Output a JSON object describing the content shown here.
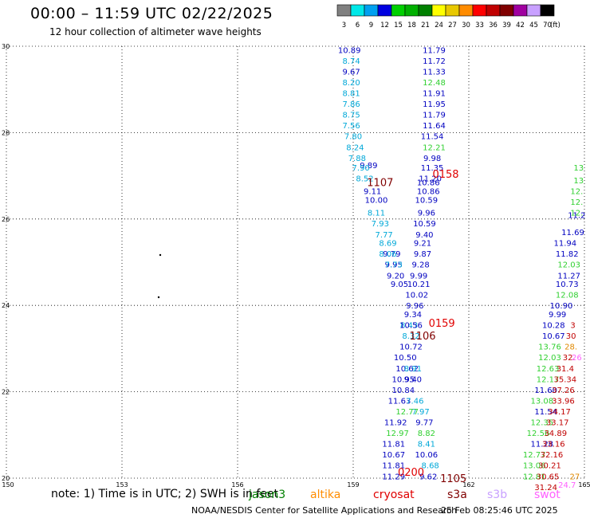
{
  "header": {
    "title": "00:00 – 11:59 UTC 02/22/2025",
    "subtitle": "12 hour collection of altimeter wave heights"
  },
  "legend": {
    "unit": "(ft)",
    "items": [
      {
        "label": "3",
        "color": "#808080"
      },
      {
        "label": "6",
        "color": "#00e8e8"
      },
      {
        "label": "9",
        "color": "#00a0f0"
      },
      {
        "label": "12",
        "color": "#0000e0"
      },
      {
        "label": "15",
        "color": "#00d000"
      },
      {
        "label": "18",
        "color": "#00b000"
      },
      {
        "label": "21",
        "color": "#008000"
      },
      {
        "label": "24",
        "color": "#ffff00"
      },
      {
        "label": "27",
        "color": "#e8c800"
      },
      {
        "label": "30",
        "color": "#ff8c00"
      },
      {
        "label": "33",
        "color": "#ff0000"
      },
      {
        "label": "36",
        "color": "#c00000"
      },
      {
        "label": "39",
        "color": "#800000"
      },
      {
        "label": "42",
        "color": "#a000a0"
      },
      {
        "label": "45",
        "color": "#c8a0ff"
      },
      {
        "label": "70",
        "color": "#000000"
      }
    ]
  },
  "map": {
    "lon_labels": [
      "150",
      "153",
      "156",
      "159",
      "162",
      "165"
    ],
    "lat_labels": [
      "30",
      "28",
      "26",
      "24",
      "22",
      "20"
    ]
  },
  "chart_data": {
    "type": "scatter",
    "x_range": [
      150,
      165
    ],
    "y_range": [
      20,
      30
    ],
    "annotations": [
      {
        "text": "1107",
        "lon": 159.7,
        "lat": 26.85,
        "color": "#800000"
      },
      {
        "text": "0158",
        "lon": 161.4,
        "lat": 27.05,
        "color": "#e00000"
      },
      {
        "text": "0159",
        "lon": 161.3,
        "lat": 23.6,
        "color": "#e00000"
      },
      {
        "text": "1106",
        "lon": 160.8,
        "lat": 23.3,
        "color": "#800000"
      },
      {
        "text": "0200",
        "lon": 160.5,
        "lat": 20.15,
        "color": "#e00000"
      },
      {
        "text": "1105",
        "lon": 161.6,
        "lat": 20.0,
        "color": "#800000"
      }
    ],
    "series": [
      {
        "color": "#0000c0",
        "values": [
          {
            "lon": 158.9,
            "lat": 29.92,
            "v": "10.89"
          },
          {
            "lon": 158.95,
            "lat": 29.42,
            "v": "9.67"
          },
          {
            "lon": 159.4,
            "lat": 27.25,
            "v": "9.89"
          },
          {
            "lon": 159.5,
            "lat": 26.65,
            "v": "9.11"
          },
          {
            "lon": 159.6,
            "lat": 26.45,
            "v": "10.00"
          },
          {
            "lon": 160.0,
            "lat": 25.2,
            "v": "9.79"
          },
          {
            "lon": 160.05,
            "lat": 24.95,
            "v": "9.95"
          },
          {
            "lon": 160.1,
            "lat": 24.7,
            "v": "9.20"
          },
          {
            "lon": 160.2,
            "lat": 24.5,
            "v": "9.05"
          },
          {
            "lon": 160.35,
            "lat": 22.8,
            "v": "10.50"
          },
          {
            "lon": 160.4,
            "lat": 22.55,
            "v": "10.62"
          },
          {
            "lon": 160.3,
            "lat": 22.3,
            "v": "10.95"
          },
          {
            "lon": 160.3,
            "lat": 22.05,
            "v": "10.84"
          },
          {
            "lon": 160.2,
            "lat": 21.8,
            "v": "11.63"
          },
          {
            "lon": 160.1,
            "lat": 21.3,
            "v": "11.92"
          },
          {
            "lon": 160.05,
            "lat": 20.8,
            "v": "11.81"
          },
          {
            "lon": 160.05,
            "lat": 20.55,
            "v": "10.67"
          },
          {
            "lon": 160.05,
            "lat": 20.3,
            "v": "11.81"
          },
          {
            "lon": 160.05,
            "lat": 20.05,
            "v": "11.29"
          }
        ]
      },
      {
        "color": "#00a8d8",
        "values": [
          {
            "lon": 158.95,
            "lat": 29.67,
            "v": "8.74"
          },
          {
            "lon": 158.95,
            "lat": 29.17,
            "v": "8.20"
          },
          {
            "lon": 158.95,
            "lat": 28.92,
            "v": "8.81"
          },
          {
            "lon": 158.95,
            "lat": 28.67,
            "v": "7.86"
          },
          {
            "lon": 158.95,
            "lat": 28.42,
            "v": "8.75"
          },
          {
            "lon": 158.95,
            "lat": 28.17,
            "v": "7.56"
          },
          {
            "lon": 159.0,
            "lat": 27.92,
            "v": "7.80"
          },
          {
            "lon": 159.05,
            "lat": 27.67,
            "v": "8.24"
          },
          {
            "lon": 159.1,
            "lat": 27.42,
            "v": "7.88"
          },
          {
            "lon": 159.2,
            "lat": 27.2,
            "v": "7.90"
          },
          {
            "lon": 159.3,
            "lat": 26.95,
            "v": "8.52"
          },
          {
            "lon": 159.6,
            "lat": 26.15,
            "v": "8.11"
          },
          {
            "lon": 159.7,
            "lat": 25.9,
            "v": "7.93"
          },
          {
            "lon": 159.8,
            "lat": 25.65,
            "v": "7.77"
          },
          {
            "lon": 159.9,
            "lat": 25.45,
            "v": "8.69"
          },
          {
            "lon": 159.9,
            "lat": 25.2,
            "v": "8.06"
          },
          {
            "lon": 160.05,
            "lat": 24.95,
            "v": "7.73"
          },
          {
            "lon": 160.45,
            "lat": 23.55,
            "v": "8.43"
          },
          {
            "lon": 160.5,
            "lat": 23.3,
            "v": "8.32"
          },
          {
            "lon": 160.55,
            "lat": 22.55,
            "v": "8.91"
          },
          {
            "lon": 160.6,
            "lat": 21.8,
            "v": "7.46"
          },
          {
            "lon": 160.75,
            "lat": 21.55,
            "v": "7.97"
          },
          {
            "lon": 160.9,
            "lat": 20.8,
            "v": "8.41"
          },
          {
            "lon": 161.0,
            "lat": 20.3,
            "v": "8.68"
          }
        ]
      },
      {
        "color": "#0000c0",
        "values": [
          {
            "lon": 161.1,
            "lat": 29.92,
            "v": "11.79"
          },
          {
            "lon": 161.1,
            "lat": 29.67,
            "v": "11.72"
          },
          {
            "lon": 161.1,
            "lat": 29.42,
            "v": "11.33"
          },
          {
            "lon": 161.1,
            "lat": 28.92,
            "v": "11.91"
          },
          {
            "lon": 161.1,
            "lat": 28.67,
            "v": "11.95"
          },
          {
            "lon": 161.1,
            "lat": 28.42,
            "v": "11.79"
          },
          {
            "lon": 161.1,
            "lat": 28.17,
            "v": "11.64"
          },
          {
            "lon": 161.05,
            "lat": 27.92,
            "v": "11.54"
          },
          {
            "lon": 161.05,
            "lat": 27.42,
            "v": "9.98"
          },
          {
            "lon": 161.05,
            "lat": 27.2,
            "v": "11.35"
          },
          {
            "lon": 161.0,
            "lat": 26.95,
            "v": "11.20"
          },
          {
            "lon": 160.95,
            "lat": 26.85,
            "v": "10.86"
          },
          {
            "lon": 160.95,
            "lat": 26.65,
            "v": "10.86"
          },
          {
            "lon": 160.9,
            "lat": 26.45,
            "v": "10.59"
          },
          {
            "lon": 160.9,
            "lat": 26.15,
            "v": "9.96"
          },
          {
            "lon": 160.85,
            "lat": 25.9,
            "v": "10.59"
          },
          {
            "lon": 160.85,
            "lat": 25.65,
            "v": "9.40"
          },
          {
            "lon": 160.8,
            "lat": 25.45,
            "v": "9.21"
          },
          {
            "lon": 160.8,
            "lat": 25.2,
            "v": "9.87"
          },
          {
            "lon": 160.75,
            "lat": 24.95,
            "v": "9.28"
          },
          {
            "lon": 160.7,
            "lat": 24.7,
            "v": "9.99"
          },
          {
            "lon": 160.7,
            "lat": 24.5,
            "v": "10.21"
          },
          {
            "lon": 160.65,
            "lat": 24.25,
            "v": "10.02"
          },
          {
            "lon": 160.6,
            "lat": 24.0,
            "v": "9.96"
          },
          {
            "lon": 160.55,
            "lat": 23.8,
            "v": "9.34"
          },
          {
            "lon": 160.5,
            "lat": 23.55,
            "v": "10.56"
          },
          {
            "lon": 160.5,
            "lat": 23.05,
            "v": "10.72"
          },
          {
            "lon": 160.55,
            "lat": 22.3,
            "v": "9.40"
          },
          {
            "lon": 160.85,
            "lat": 21.3,
            "v": "9.77"
          },
          {
            "lon": 160.9,
            "lat": 20.55,
            "v": "10.06"
          },
          {
            "lon": 160.95,
            "lat": 20.05,
            "v": "9.62"
          }
        ]
      },
      {
        "color": "#30d030",
        "values": [
          {
            "lon": 161.1,
            "lat": 29.17,
            "v": "12.48"
          },
          {
            "lon": 161.1,
            "lat": 27.67,
            "v": "12.21"
          },
          {
            "lon": 160.4,
            "lat": 21.55,
            "v": "12.77"
          },
          {
            "lon": 160.15,
            "lat": 21.05,
            "v": "12.97"
          },
          {
            "lon": 160.9,
            "lat": 21.05,
            "v": "8.82"
          }
        ]
      },
      {
        "color": "#0000c0",
        "values": [
          {
            "lon": 164.4,
            "lat": 24.0,
            "v": "10.90"
          },
          {
            "lon": 164.3,
            "lat": 23.8,
            "v": "9.99"
          },
          {
            "lon": 164.2,
            "lat": 23.55,
            "v": "10.28"
          },
          {
            "lon": 164.2,
            "lat": 23.3,
            "v": "10.67"
          },
          {
            "lon": 164.5,
            "lat": 25.45,
            "v": "11.94"
          },
          {
            "lon": 164.55,
            "lat": 25.2,
            "v": "11.82"
          },
          {
            "lon": 164.6,
            "lat": 24.7,
            "v": "11.27"
          },
          {
            "lon": 164.55,
            "lat": 24.5,
            "v": "10.73"
          },
          {
            "lon": 164.7,
            "lat": 25.7,
            "v": "11.69"
          },
          {
            "lon": 164.8,
            "lat": 26.1,
            "v": "11.2"
          },
          {
            "lon": 164.0,
            "lat": 22.05,
            "v": "11.60"
          },
          {
            "lon": 164.0,
            "lat": 21.55,
            "v": "11.54"
          },
          {
            "lon": 163.9,
            "lat": 20.8,
            "v": "11.28"
          }
        ]
      },
      {
        "color": "#30d030",
        "values": [
          {
            "lon": 164.6,
            "lat": 24.95,
            "v": "12.03"
          },
          {
            "lon": 164.55,
            "lat": 24.25,
            "v": "12.08"
          },
          {
            "lon": 164.1,
            "lat": 23.05,
            "v": "13.76"
          },
          {
            "lon": 164.1,
            "lat": 22.8,
            "v": "12.03"
          },
          {
            "lon": 164.05,
            "lat": 22.55,
            "v": "12.63"
          },
          {
            "lon": 164.05,
            "lat": 22.3,
            "v": "12.17"
          },
          {
            "lon": 163.9,
            "lat": 21.8,
            "v": "13.08"
          },
          {
            "lon": 163.9,
            "lat": 21.3,
            "v": "12.35"
          },
          {
            "lon": 163.8,
            "lat": 21.05,
            "v": "12.56"
          },
          {
            "lon": 163.7,
            "lat": 20.55,
            "v": "12.77"
          },
          {
            "lon": 163.7,
            "lat": 20.3,
            "v": "13.06"
          },
          {
            "lon": 163.7,
            "lat": 20.05,
            "v": "12.81"
          },
          {
            "lon": 164.85,
            "lat": 27.2,
            "v": "13"
          },
          {
            "lon": 164.85,
            "lat": 26.9,
            "v": "13"
          },
          {
            "lon": 164.8,
            "lat": 26.65,
            "v": "12."
          },
          {
            "lon": 164.8,
            "lat": 26.4,
            "v": "12."
          },
          {
            "lon": 164.8,
            "lat": 26.15,
            "v": "12."
          }
        ]
      },
      {
        "color": "#c00000",
        "values": [
          {
            "lon": 164.7,
            "lat": 23.55,
            "v": "3"
          },
          {
            "lon": 164.65,
            "lat": 23.3,
            "v": "30"
          },
          {
            "lon": 164.6,
            "lat": 22.8,
            "v": "32."
          },
          {
            "lon": 164.5,
            "lat": 22.55,
            "v": "31.4"
          },
          {
            "lon": 164.5,
            "lat": 22.3,
            "v": "35.34"
          },
          {
            "lon": 164.45,
            "lat": 22.05,
            "v": "37.26"
          },
          {
            "lon": 164.45,
            "lat": 21.8,
            "v": "33.96"
          },
          {
            "lon": 164.35,
            "lat": 21.55,
            "v": "34.17"
          },
          {
            "lon": 164.3,
            "lat": 21.3,
            "v": "33.17"
          },
          {
            "lon": 164.25,
            "lat": 21.05,
            "v": "34.89"
          },
          {
            "lon": 164.2,
            "lat": 20.8,
            "v": "33.16"
          },
          {
            "lon": 164.15,
            "lat": 20.55,
            "v": "32.16"
          },
          {
            "lon": 164.1,
            "lat": 20.3,
            "v": "30.21"
          },
          {
            "lon": 164.05,
            "lat": 20.05,
            "v": "30.65"
          },
          {
            "lon": 164.0,
            "lat": 19.8,
            "v": "31.24"
          }
        ]
      },
      {
        "color": "#e08800",
        "values": [
          {
            "lon": 164.65,
            "lat": 23.05,
            "v": "28."
          },
          {
            "lon": 164.75,
            "lat": 20.05,
            "v": "27"
          }
        ]
      },
      {
        "color": "#ff60ff",
        "values": [
          {
            "lon": 164.8,
            "lat": 22.8,
            "v": "26"
          },
          {
            "lon": 164.55,
            "lat": 19.85,
            "v": "24.7"
          }
        ]
      }
    ]
  },
  "footer": {
    "note": "note:  1) Time is in UTC; 2) SWH is in feet",
    "satellites": [
      {
        "name": "jason3",
        "color": "#008000"
      },
      {
        "name": "altika",
        "color": "#ff8c00"
      },
      {
        "name": "cryosat",
        "color": "#e00000"
      },
      {
        "name": "s3a",
        "color": "#800000"
      },
      {
        "name": "s3b",
        "color": "#c8a0ff"
      },
      {
        "name": "swot",
        "color": "#ff60ff"
      }
    ],
    "credit": "NOAA/NESDIS Center for Satellite Applications and Research",
    "timestamp": "25 Feb 08:25:46 UTC 2025"
  }
}
